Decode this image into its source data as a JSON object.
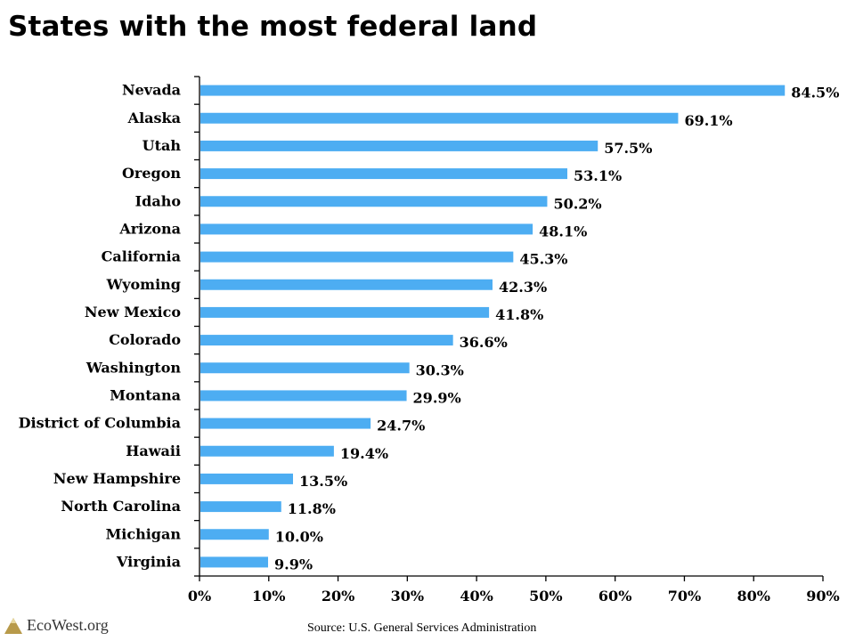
{
  "chart_data": {
    "type": "bar",
    "orientation": "horizontal",
    "title": "States with the most federal land",
    "categories": [
      "Nevada",
      "Alaska",
      "Utah",
      "Oregon",
      "Idaho",
      "Arizona",
      "California",
      "Wyoming",
      "New Mexico",
      "Colorado",
      "Washington",
      "Montana",
      "District of Columbia",
      "Hawaii",
      "New Hampshire",
      "North Carolina",
      "Michigan",
      "Virginia"
    ],
    "values": [
      84.5,
      69.1,
      57.5,
      53.1,
      50.2,
      48.1,
      45.3,
      42.3,
      41.8,
      36.6,
      30.3,
      29.9,
      24.7,
      19.4,
      13.5,
      11.8,
      10.0,
      9.9
    ],
    "value_labels": [
      "84.5%",
      "69.1%",
      "57.5%",
      "53.1%",
      "50.2%",
      "48.1%",
      "45.3%",
      "42.3%",
      "41.8%",
      "36.6%",
      "30.3%",
      "29.9%",
      "24.7%",
      "19.4%",
      "13.5%",
      "11.8%",
      "10.0%",
      "9.9%"
    ],
    "xlim": [
      0,
      90
    ],
    "xticks": [
      "0%",
      "10%",
      "20%",
      "30%",
      "40%",
      "50%",
      "60%",
      "70%",
      "80%",
      "90%"
    ],
    "xlabel": "",
    "ylabel": "",
    "grid": false,
    "bar_color": "#4DADF2"
  },
  "footer": {
    "logo_text": "EcoWest.org",
    "source": "Source: U.S. General Services Administration"
  }
}
